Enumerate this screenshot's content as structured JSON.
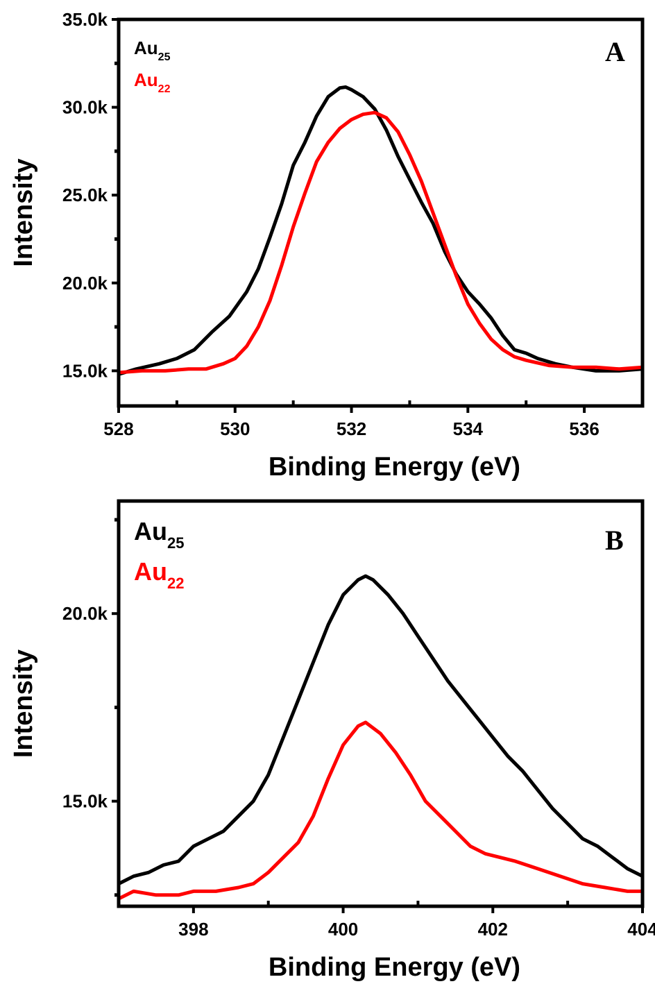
{
  "chart_data": [
    {
      "type": "line",
      "panel_label": "A",
      "xlabel": "Binding Energy (eV)",
      "ylabel": "Intensity",
      "xlim": [
        528,
        537
      ],
      "ylim": [
        13000,
        35000
      ],
      "x_ticks": [
        528,
        530,
        532,
        534,
        536
      ],
      "x_tick_labels": [
        "528",
        "530",
        "532",
        "534",
        "536"
      ],
      "y_ticks": [
        15000,
        20000,
        25000,
        30000,
        35000
      ],
      "y_tick_labels": [
        "15.0k",
        "20.0k",
        "25.0k",
        "30.0k",
        "35.0k"
      ],
      "legend_position": "top-left",
      "series": [
        {
          "name": "Au25",
          "label_main": "Au",
          "label_sub": "25",
          "color": "#000000",
          "points": [
            [
              528,
              14800
            ],
            [
              528.3,
              15100
            ],
            [
              528.7,
              15400
            ],
            [
              529,
              15700
            ],
            [
              529.3,
              16200
            ],
            [
              529.6,
              17200
            ],
            [
              529.9,
              18100
            ],
            [
              530.2,
              19500
            ],
            [
              530.4,
              20800
            ],
            [
              530.6,
              22600
            ],
            [
              530.8,
              24500
            ],
            [
              531,
              26700
            ],
            [
              531.2,
              28000
            ],
            [
              531.4,
              29500
            ],
            [
              531.6,
              30600
            ],
            [
              531.8,
              31100
            ],
            [
              531.9,
              31150
            ],
            [
              532,
              31000
            ],
            [
              532.2,
              30600
            ],
            [
              532.4,
              29900
            ],
            [
              532.6,
              28700
            ],
            [
              532.8,
              27200
            ],
            [
              533,
              25900
            ],
            [
              533.2,
              24600
            ],
            [
              533.4,
              23400
            ],
            [
              533.6,
              21800
            ],
            [
              533.8,
              20500
            ],
            [
              534,
              19500
            ],
            [
              534.2,
              18800
            ],
            [
              534.4,
              18000
            ],
            [
              534.6,
              17000
            ],
            [
              534.8,
              16200
            ],
            [
              535,
              16000
            ],
            [
              535.2,
              15700
            ],
            [
              535.5,
              15400
            ],
            [
              535.8,
              15200
            ],
            [
              536.2,
              15000
            ],
            [
              536.6,
              15000
            ],
            [
              537,
              15100
            ]
          ]
        },
        {
          "name": "Au22",
          "label_main": "Au",
          "label_sub": "22",
          "color": "#ff0000",
          "points": [
            [
              528,
              14900
            ],
            [
              528.4,
              15000
            ],
            [
              528.8,
              15000
            ],
            [
              529.2,
              15100
            ],
            [
              529.5,
              15100
            ],
            [
              529.8,
              15400
            ],
            [
              530,
              15700
            ],
            [
              530.2,
              16400
            ],
            [
              530.4,
              17500
            ],
            [
              530.6,
              19000
            ],
            [
              530.8,
              21000
            ],
            [
              531,
              23200
            ],
            [
              531.2,
              25100
            ],
            [
              531.4,
              26900
            ],
            [
              531.6,
              28000
            ],
            [
              531.8,
              28800
            ],
            [
              532,
              29300
            ],
            [
              532.2,
              29600
            ],
            [
              532.4,
              29700
            ],
            [
              532.6,
              29400
            ],
            [
              532.8,
              28600
            ],
            [
              533,
              27300
            ],
            [
              533.2,
              25800
            ],
            [
              533.4,
              24000
            ],
            [
              533.6,
              22200
            ],
            [
              533.8,
              20400
            ],
            [
              534,
              18800
            ],
            [
              534.2,
              17700
            ],
            [
              534.4,
              16800
            ],
            [
              534.6,
              16200
            ],
            [
              534.8,
              15800
            ],
            [
              535,
              15600
            ],
            [
              535.4,
              15300
            ],
            [
              535.8,
              15200
            ],
            [
              536.2,
              15200
            ],
            [
              536.6,
              15100
            ],
            [
              537,
              15200
            ]
          ]
        }
      ]
    },
    {
      "type": "line",
      "panel_label": "B",
      "xlabel": "Binding Energy (eV)",
      "ylabel": "Intensity",
      "xlim": [
        397,
        404
      ],
      "ylim": [
        12200,
        23000
      ],
      "x_ticks": [
        398,
        400,
        402,
        404
      ],
      "x_tick_labels": [
        "398",
        "400",
        "402",
        "404"
      ],
      "y_ticks": [
        15000,
        20000
      ],
      "y_tick_labels": [
        "15.0k",
        "20.0k"
      ],
      "legend_position": "top-left",
      "series": [
        {
          "name": "Au25",
          "label_main": "Au",
          "label_sub": "25",
          "color": "#000000",
          "points": [
            [
              397,
              12800
            ],
            [
              397.2,
              13000
            ],
            [
              397.4,
              13100
            ],
            [
              397.6,
              13300
            ],
            [
              397.8,
              13400
            ],
            [
              398,
              13800
            ],
            [
              398.2,
              14000
            ],
            [
              398.4,
              14200
            ],
            [
              398.6,
              14600
            ],
            [
              398.8,
              15000
            ],
            [
              399,
              15700
            ],
            [
              399.2,
              16700
            ],
            [
              399.4,
              17700
            ],
            [
              399.6,
              18700
            ],
            [
              399.8,
              19700
            ],
            [
              400,
              20500
            ],
            [
              400.2,
              20900
            ],
            [
              400.3,
              21000
            ],
            [
              400.4,
              20900
            ],
            [
              400.6,
              20500
            ],
            [
              400.8,
              20000
            ],
            [
              401,
              19400
            ],
            [
              401.2,
              18800
            ],
            [
              401.4,
              18200
            ],
            [
              401.6,
              17700
            ],
            [
              401.8,
              17200
            ],
            [
              402,
              16700
            ],
            [
              402.2,
              16200
            ],
            [
              402.4,
              15800
            ],
            [
              402.6,
              15300
            ],
            [
              402.8,
              14800
            ],
            [
              403,
              14400
            ],
            [
              403.2,
              14000
            ],
            [
              403.4,
              13800
            ],
            [
              403.6,
              13500
            ],
            [
              403.8,
              13200
            ],
            [
              404,
              13000
            ]
          ]
        },
        {
          "name": "Au22",
          "label_main": "Au",
          "label_sub": "22",
          "color": "#ff0000",
          "points": [
            [
              397,
              12400
            ],
            [
              397.2,
              12600
            ],
            [
              397.5,
              12500
            ],
            [
              397.8,
              12500
            ],
            [
              398,
              12600
            ],
            [
              398.3,
              12600
            ],
            [
              398.6,
              12700
            ],
            [
              398.8,
              12800
            ],
            [
              399,
              13100
            ],
            [
              399.2,
              13500
            ],
            [
              399.4,
              13900
            ],
            [
              399.6,
              14600
            ],
            [
              399.8,
              15600
            ],
            [
              400,
              16500
            ],
            [
              400.2,
              17000
            ],
            [
              400.3,
              17100
            ],
            [
              400.5,
              16800
            ],
            [
              400.7,
              16300
            ],
            [
              400.9,
              15700
            ],
            [
              401.1,
              15000
            ],
            [
              401.3,
              14600
            ],
            [
              401.5,
              14200
            ],
            [
              401.7,
              13800
            ],
            [
              401.9,
              13600
            ],
            [
              402.1,
              13500
            ],
            [
              402.3,
              13400
            ],
            [
              402.6,
              13200
            ],
            [
              402.9,
              13000
            ],
            [
              403.2,
              12800
            ],
            [
              403.5,
              12700
            ],
            [
              403.8,
              12600
            ],
            [
              404,
              12600
            ]
          ]
        }
      ]
    }
  ]
}
